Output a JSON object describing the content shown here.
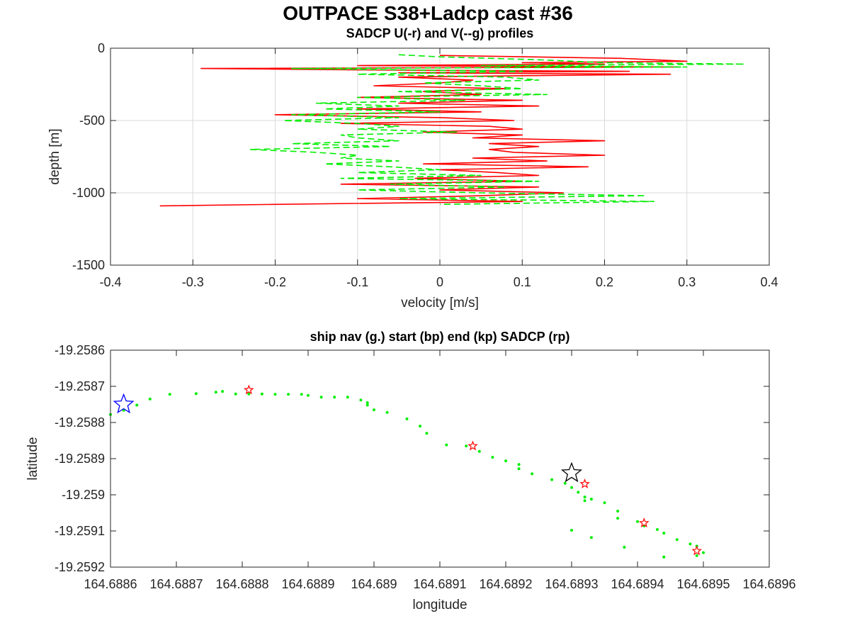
{
  "figure": {
    "title": "OUTPACE S38+Ladcp cast #36"
  },
  "chart_data": [
    {
      "type": "line",
      "title": "SADCP U(-r) and V(--g) profiles",
      "xlabel": "velocity [m/s]",
      "ylabel": "depth [m]",
      "xlim": [
        -0.4,
        0.4
      ],
      "ylim": [
        -1500,
        0
      ],
      "xticks": [
        -0.4,
        -0.3,
        -0.2,
        -0.1,
        0,
        0.1,
        0.2,
        0.3,
        0.4
      ],
      "xtick_labels": [
        "-0.4",
        "-0.3",
        "-0.2",
        "-0.1",
        "0",
        "0.1",
        "0.2",
        "0.3",
        "0.4"
      ],
      "yticks": [
        0,
        -500,
        -1000,
        -1500
      ],
      "ytick_labels": [
        "0",
        "-500",
        "-1000",
        "-1500"
      ],
      "grid": true,
      "series": [
        {
          "color": "#ff0000",
          "style": "solid",
          "depth": [
            -50,
            -70,
            -90,
            -100,
            -110,
            -120,
            -130,
            -140,
            -150,
            -160,
            -170,
            -180,
            -190,
            -200,
            -220,
            -240,
            -260,
            -280,
            -300,
            -320,
            -340,
            -360,
            -380,
            -400,
            -420,
            -440,
            -460,
            -480,
            -500,
            -520,
            -540,
            -560,
            -580,
            -600,
            -620,
            -640,
            -660,
            -680,
            -700,
            -720,
            -740,
            -760,
            -780,
            -800,
            -820,
            -840,
            -860,
            -880,
            -900,
            -920,
            -940,
            -960,
            -980,
            -1000,
            -1020,
            -1040,
            -1060,
            -1080,
            -1090
          ],
          "values": [
            0.0,
            0.22,
            0.3,
            0.1,
            0.2,
            -0.1,
            0.29,
            -0.29,
            -0.1,
            0.23,
            -0.05,
            0.28,
            0.1,
            -0.05,
            0.04,
            0.0,
            -0.08,
            0.08,
            -0.02,
            0.05,
            -0.1,
            0.1,
            -0.05,
            0.12,
            -0.1,
            0.05,
            -0.2,
            0.0,
            0.09,
            -0.12,
            0.06,
            0.1,
            -0.02,
            0.1,
            0.04,
            0.2,
            0.06,
            0.12,
            0.06,
            0.09,
            0.2,
            0.04,
            0.13,
            -0.02,
            0.18,
            0.0,
            0.07,
            0.12,
            -0.03,
            0.1,
            -0.12,
            0.12,
            0.0,
            0.15,
            0.05,
            -0.1,
            0.1,
            -0.2,
            -0.34
          ]
        },
        {
          "color": "#00ee00",
          "style": "dashed",
          "depth": [
            -45,
            -60,
            -80,
            -100,
            -110,
            -120,
            -130,
            -140,
            -160,
            -180,
            -200,
            -220,
            -240,
            -260,
            -280,
            -300,
            -320,
            -340,
            -360,
            -380,
            -400,
            -420,
            -440,
            -460,
            -480,
            -500,
            -520,
            -540,
            -560,
            -580,
            -600,
            -620,
            -640,
            -660,
            -680,
            -700,
            -720,
            -740,
            -760,
            -780,
            -800,
            -820,
            -840,
            -860,
            -880,
            -900,
            -920,
            -940,
            -960,
            -980,
            -1000,
            -1020,
            -1040,
            -1060,
            -1080
          ],
          "values": [
            -0.05,
            0.0,
            0.12,
            0.2,
            0.37,
            0.05,
            0.3,
            -0.18,
            0.1,
            -0.1,
            0.08,
            0.12,
            -0.02,
            0.05,
            0.1,
            -0.05,
            0.13,
            -0.1,
            0.03,
            -0.15,
            -0.05,
            -0.14,
            0.0,
            -0.18,
            -0.05,
            -0.19,
            -0.1,
            -0.05,
            -0.1,
            0.02,
            -0.12,
            -0.1,
            -0.05,
            -0.18,
            -0.06,
            -0.23,
            -0.15,
            -0.1,
            -0.12,
            -0.05,
            -0.14,
            -0.06,
            0.0,
            -0.1,
            0.05,
            -0.12,
            0.12,
            -0.06,
            0.08,
            -0.1,
            0.05,
            0.25,
            -0.05,
            0.26,
            0.0
          ]
        }
      ]
    },
    {
      "type": "scatter",
      "title": "ship nav (g.) start (bp) end (kp) SADCP (rp)",
      "xlabel": "longitude",
      "ylabel": "latitude",
      "xlim": [
        164.6886,
        164.6896
      ],
      "ylim": [
        -19.2592,
        -19.2586
      ],
      "xticks": [
        164.6886,
        164.6887,
        164.6888,
        164.6889,
        164.689,
        164.6891,
        164.6892,
        164.6893,
        164.6894,
        164.6895,
        164.6896
      ],
      "xtick_labels": [
        "164.6886",
        "164.6887",
        "164.6888",
        "164.6889",
        "164.689",
        "164.6891",
        "164.6892",
        "164.6893",
        "164.6894",
        "164.6895",
        "164.6896"
      ],
      "yticks": [
        -19.2586,
        -19.2587,
        -19.2588,
        -19.2589,
        -19.259,
        -19.2591,
        -19.2592
      ],
      "ytick_labels": [
        "-19.2586",
        "-19.2587",
        "-19.2588",
        "-19.2589",
        "-19.259",
        "-19.2591",
        "-19.2592"
      ],
      "grid": false,
      "nav": {
        "color": "#00ee00",
        "lon": [
          164.6886,
          164.68862,
          164.68864,
          164.68866,
          164.68869,
          164.68873,
          164.68876,
          164.68877,
          164.68879,
          164.68881,
          164.68883,
          164.68885,
          164.68887,
          164.68889,
          164.6889,
          164.68892,
          164.68894,
          164.68896,
          164.68898,
          164.68899,
          164.68899,
          164.689,
          164.68902,
          164.68905,
          164.68907,
          164.68908,
          164.68911,
          164.68914,
          164.68916,
          164.68918,
          164.6892,
          164.68922,
          164.68922,
          164.68924,
          164.68927,
          164.68929,
          164.6893,
          164.68931,
          164.68932,
          164.68932,
          164.68933,
          164.68935,
          164.68937,
          164.68937,
          164.6894,
          164.68941,
          164.68943,
          164.68944,
          164.68946,
          164.68948,
          164.68949,
          164.6895,
          164.68949,
          164.68944,
          164.68938,
          164.68933,
          164.6893
        ],
        "lat": [
          -19.258778,
          -19.258766,
          -19.258752,
          -19.258735,
          -19.258722,
          -19.25872,
          -19.258716,
          -19.258714,
          -19.258721,
          -19.258721,
          -19.258721,
          -19.258722,
          -19.258722,
          -19.258722,
          -19.258725,
          -19.25873,
          -19.25873,
          -19.25873,
          -19.258738,
          -19.258745,
          -19.258752,
          -19.258765,
          -19.258772,
          -19.25879,
          -19.25881,
          -19.25883,
          -19.258862,
          -19.258865,
          -19.25888,
          -19.258896,
          -19.258906,
          -19.258916,
          -19.258928,
          -19.258942,
          -19.258958,
          -19.258968,
          -19.25898,
          -19.258993,
          -19.259006,
          -19.259016,
          -19.259012,
          -19.259022,
          -19.259045,
          -19.259065,
          -19.259074,
          -19.259086,
          -19.259096,
          -19.259106,
          -19.259124,
          -19.259136,
          -19.259142,
          -19.25916,
          -19.259168,
          -19.259172,
          -19.259145,
          -19.259118,
          -19.259098
        ]
      },
      "start": {
        "color": "#0000ff",
        "lon": 164.68862,
        "lat": -19.25875
      },
      "end": {
        "color": "#000000",
        "lon": 164.6893,
        "lat": -19.25894
      },
      "sadcp": {
        "color": "#ff0000",
        "lon": [
          164.68881,
          164.68915,
          164.68932,
          164.68941,
          164.68949
        ],
        "lat": [
          -19.25871,
          -19.258865,
          -19.25897,
          -19.259078,
          -19.259155
        ]
      }
    }
  ]
}
